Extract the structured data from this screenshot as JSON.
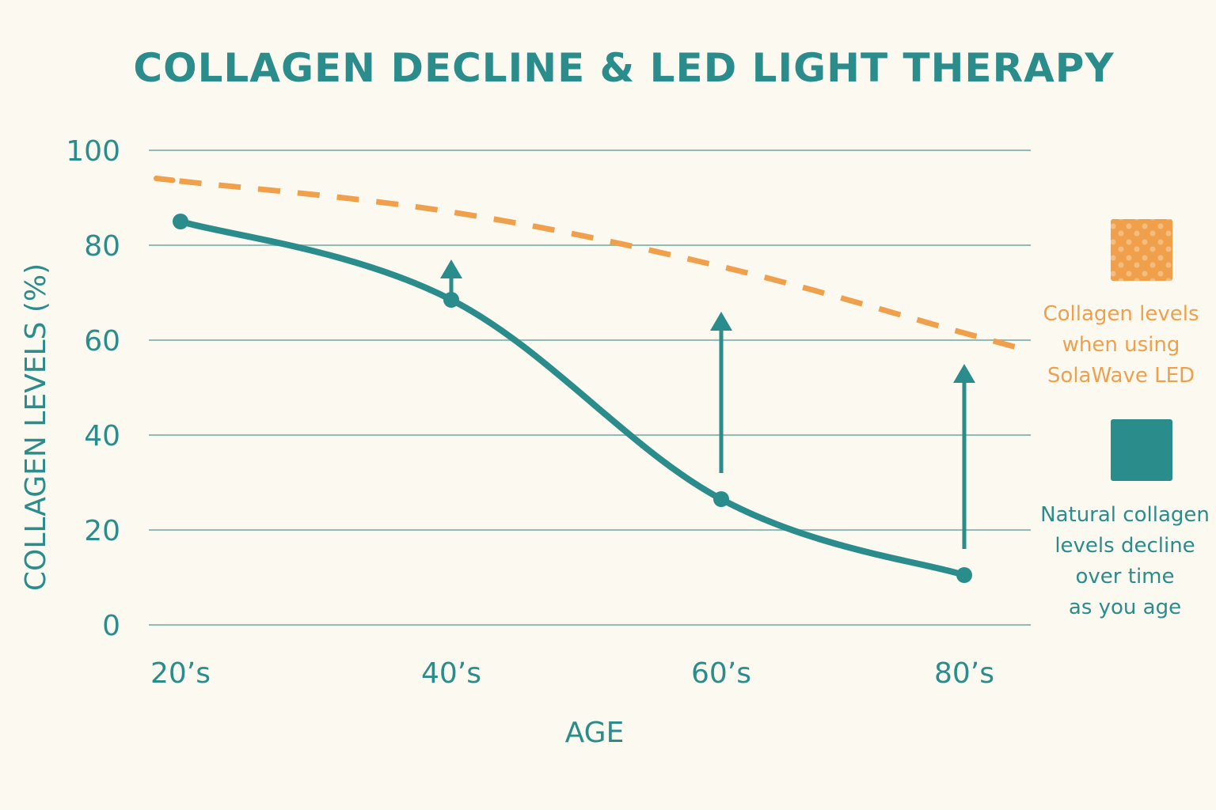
{
  "colors": {
    "background": "#fcf9f1",
    "teal": "#2b8c8c",
    "orange": "#f0a04b",
    "grid": "#8fbcb7"
  },
  "chart_data": {
    "type": "line",
    "title": "COLLAGEN DECLINE & LED LIGHT THERAPY",
    "xlabel": "AGE",
    "ylabel": "COLLAGEN LEVELS (%)",
    "categories": [
      "20’s",
      "40’s",
      "60’s",
      "80’s"
    ],
    "ylim": [
      0,
      100
    ],
    "yticks": [
      0,
      20,
      40,
      60,
      80,
      100
    ],
    "grid": true,
    "legend_position": "right",
    "series": [
      {
        "name": "Natural collagen levels decline over time as you age",
        "style": "solid",
        "color": "#2b8c8c",
        "marker": "circle",
        "values": [
          85,
          68.5,
          26.5,
          10.5
        ]
      },
      {
        "name": "Collagen levels when using SolaWave LED",
        "style": "dashed",
        "color": "#f0a04b",
        "marker": "none",
        "values": [
          93.5,
          87,
          75.5,
          61.5
        ]
      }
    ],
    "annotations": [
      {
        "type": "arrow",
        "category": "40’s",
        "from": 70,
        "to": 77
      },
      {
        "type": "arrow",
        "category": "60’s",
        "from": 32,
        "to": 66
      },
      {
        "type": "arrow",
        "category": "80’s",
        "from": 16,
        "to": 55
      }
    ],
    "legend": [
      {
        "swatch": "orange-dotted-square",
        "lines": [
          "Collagen levels",
          "when using",
          "SolaWave LED"
        ]
      },
      {
        "swatch": "teal-square",
        "lines": [
          "Natural collagen",
          "levels decline",
          "over time",
          "as you age"
        ]
      }
    ]
  }
}
